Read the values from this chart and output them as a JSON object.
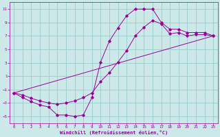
{
  "xlabel": "Windchill (Refroidissement éolien,°C)",
  "bg_color": "#cce8e8",
  "line_color": "#990099",
  "grid_color": "#99cccc",
  "xlim": [
    -0.5,
    23.5
  ],
  "ylim": [
    -6,
    12
  ],
  "xticks": [
    0,
    1,
    2,
    3,
    4,
    5,
    6,
    7,
    8,
    9,
    10,
    11,
    12,
    13,
    14,
    15,
    16,
    17,
    18,
    19,
    20,
    21,
    22,
    23
  ],
  "yticks": [
    -5,
    -3,
    -1,
    1,
    3,
    5,
    7,
    9,
    11
  ],
  "curve1_x": [
    0,
    1,
    2,
    3,
    4,
    5,
    6,
    7,
    8,
    9,
    10,
    11,
    12,
    13,
    14,
    15,
    16,
    17,
    18,
    19,
    20,
    21,
    22,
    23
  ],
  "curve1_y": [
    -1.5,
    -2.2,
    -2.8,
    -3.3,
    -3.6,
    -4.8,
    -4.8,
    -5.0,
    -4.8,
    -2.2,
    3.1,
    6.2,
    8.2,
    10.0,
    11.0,
    11.0,
    11.0,
    9.0,
    8.0,
    8.0,
    7.5,
    7.5,
    7.5,
    7.0
  ],
  "curve2_x": [
    0,
    1,
    2,
    3,
    4,
    5,
    6,
    7,
    8,
    9,
    10,
    11,
    12,
    13,
    14,
    15,
    16,
    17,
    18,
    19,
    20,
    21,
    22,
    23
  ],
  "curve2_y": [
    -1.5,
    -1.8,
    -2.3,
    -2.7,
    -3.0,
    -3.2,
    -3.0,
    -2.7,
    -2.2,
    -1.5,
    0.2,
    1.5,
    3.1,
    4.8,
    7.0,
    8.3,
    9.3,
    8.8,
    7.3,
    7.5,
    7.0,
    7.2,
    7.2,
    7.0
  ],
  "curve3_x": [
    0,
    23
  ],
  "curve3_y": [
    -1.5,
    7.0
  ]
}
